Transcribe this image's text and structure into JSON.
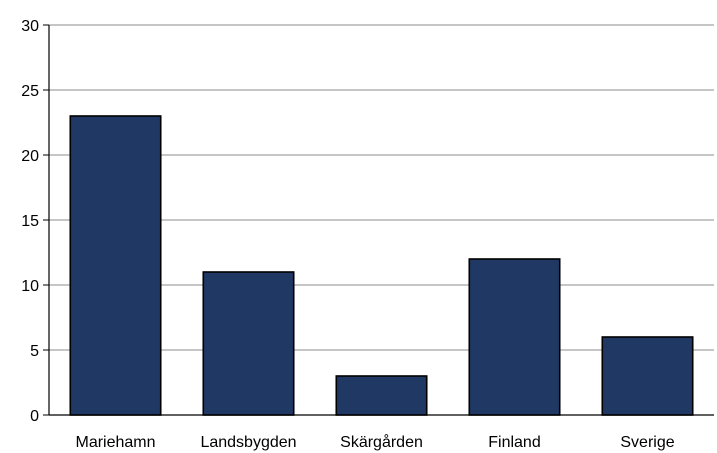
{
  "chart_data": {
    "type": "bar",
    "categories": [
      "Mariehamn",
      "Landsbygden",
      "Skärgården",
      "Finland",
      "Sverige"
    ],
    "values": [
      23,
      11,
      3,
      12,
      6
    ],
    "title": "",
    "xlabel": "",
    "ylabel": "",
    "ylim": [
      0,
      30
    ],
    "yticks": [
      0,
      5,
      10,
      15,
      20,
      25,
      30
    ],
    "grid": true,
    "legend": "none",
    "colors": {
      "bar": "#1f3864",
      "grid": "#8c8c8c",
      "axis": "#000000"
    }
  }
}
